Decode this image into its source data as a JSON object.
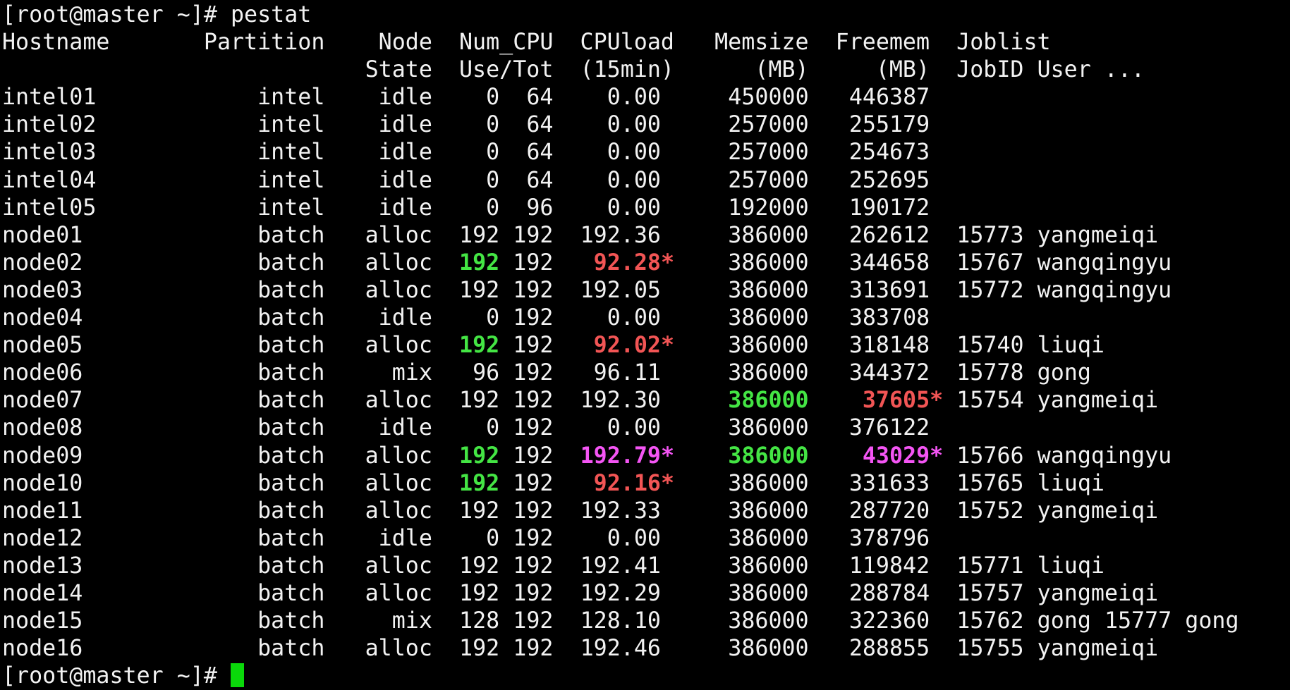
{
  "terminal": {
    "colors": {
      "background": "#000000",
      "foreground": "#f2f2f2",
      "highlight_green": "#44e544",
      "alert_red": "#f25555",
      "alert_magenta": "#f455f4",
      "cursor_green": "#0ad80a"
    },
    "command_line": {
      "prompt": "[root@master ~]#",
      "command": "pestat"
    },
    "header": {
      "line1": "Hostname       Partition    Node  Num_CPU  CPUload   Memsize  Freemem  Joblist",
      "line2": "                           State  Use/Tot  (15min)      (MB)     (MB)  JobID User ..."
    },
    "rows": [
      {
        "hostname": "intel01",
        "partition": "intel",
        "state": "idle",
        "cpu_use": "0",
        "cpu_tot": "64",
        "cpuload": "0.00",
        "cpuload_star": false,
        "memsize": "450000",
        "freemem": "446387",
        "freemem_star": false,
        "joblist": ""
      },
      {
        "hostname": "intel02",
        "partition": "intel",
        "state": "idle",
        "cpu_use": "0",
        "cpu_tot": "64",
        "cpuload": "0.00",
        "cpuload_star": false,
        "memsize": "257000",
        "freemem": "255179",
        "freemem_star": false,
        "joblist": ""
      },
      {
        "hostname": "intel03",
        "partition": "intel",
        "state": "idle",
        "cpu_use": "0",
        "cpu_tot": "64",
        "cpuload": "0.00",
        "cpuload_star": false,
        "memsize": "257000",
        "freemem": "254673",
        "freemem_star": false,
        "joblist": ""
      },
      {
        "hostname": "intel04",
        "partition": "intel",
        "state": "idle",
        "cpu_use": "0",
        "cpu_tot": "64",
        "cpuload": "0.00",
        "cpuload_star": false,
        "memsize": "257000",
        "freemem": "252695",
        "freemem_star": false,
        "joblist": ""
      },
      {
        "hostname": "intel05",
        "partition": "intel",
        "state": "idle",
        "cpu_use": "0",
        "cpu_tot": "96",
        "cpuload": "0.00",
        "cpuload_star": false,
        "memsize": "192000",
        "freemem": "190172",
        "freemem_star": false,
        "joblist": ""
      },
      {
        "hostname": "node01",
        "partition": "batch",
        "state": "alloc",
        "cpu_use": "192",
        "cpu_tot": "192",
        "cpuload": "192.36",
        "cpuload_star": false,
        "memsize": "386000",
        "freemem": "262612",
        "freemem_star": false,
        "joblist": "15773 yangmeiqi"
      },
      {
        "hostname": "node02",
        "partition": "batch",
        "state": "alloc",
        "cpu_use": "192",
        "cpu_use_color": "green",
        "cpu_tot": "192",
        "cpuload": "92.28",
        "cpuload_star": true,
        "cpuload_color": "red",
        "memsize": "386000",
        "freemem": "344658",
        "freemem_star": false,
        "joblist": "15767 wangqingyu"
      },
      {
        "hostname": "node03",
        "partition": "batch",
        "state": "alloc",
        "cpu_use": "192",
        "cpu_tot": "192",
        "cpuload": "192.05",
        "cpuload_star": false,
        "memsize": "386000",
        "freemem": "313691",
        "freemem_star": false,
        "joblist": "15772 wangqingyu"
      },
      {
        "hostname": "node04",
        "partition": "batch",
        "state": "idle",
        "cpu_use": "0",
        "cpu_tot": "192",
        "cpuload": "0.00",
        "cpuload_star": false,
        "memsize": "386000",
        "freemem": "383708",
        "freemem_star": false,
        "joblist": ""
      },
      {
        "hostname": "node05",
        "partition": "batch",
        "state": "alloc",
        "cpu_use": "192",
        "cpu_use_color": "green",
        "cpu_tot": "192",
        "cpuload": "92.02",
        "cpuload_star": true,
        "cpuload_color": "red",
        "memsize": "386000",
        "freemem": "318148",
        "freemem_star": false,
        "joblist": "15740 liuqi"
      },
      {
        "hostname": "node06",
        "partition": "batch",
        "state": "mix",
        "cpu_use": "96",
        "cpu_tot": "192",
        "cpuload": "96.11",
        "cpuload_star": false,
        "memsize": "386000",
        "freemem": "344372",
        "freemem_star": false,
        "joblist": "15778 gong"
      },
      {
        "hostname": "node07",
        "partition": "batch",
        "state": "alloc",
        "cpu_use": "192",
        "cpu_tot": "192",
        "cpuload": "192.30",
        "cpuload_star": false,
        "memsize": "386000",
        "memsize_color": "green",
        "freemem": "37605",
        "freemem_star": true,
        "freemem_color": "red",
        "joblist": "15754 yangmeiqi"
      },
      {
        "hostname": "node08",
        "partition": "batch",
        "state": "idle",
        "cpu_use": "0",
        "cpu_tot": "192",
        "cpuload": "0.00",
        "cpuload_star": false,
        "memsize": "386000",
        "freemem": "376122",
        "freemem_star": false,
        "joblist": ""
      },
      {
        "hostname": "node09",
        "partition": "batch",
        "state": "alloc",
        "cpu_use": "192",
        "cpu_use_color": "green",
        "cpu_tot": "192",
        "cpuload": "192.79",
        "cpuload_star": true,
        "cpuload_color": "magenta",
        "memsize": "386000",
        "memsize_color": "green",
        "freemem": "43029",
        "freemem_star": true,
        "freemem_color": "magenta",
        "joblist": "15766 wangqingyu"
      },
      {
        "hostname": "node10",
        "partition": "batch",
        "state": "alloc",
        "cpu_use": "192",
        "cpu_use_color": "green",
        "cpu_tot": "192",
        "cpuload": "92.16",
        "cpuload_star": true,
        "cpuload_color": "red",
        "memsize": "386000",
        "freemem": "331633",
        "freemem_star": false,
        "joblist": "15765 liuqi"
      },
      {
        "hostname": "node11",
        "partition": "batch",
        "state": "alloc",
        "cpu_use": "192",
        "cpu_tot": "192",
        "cpuload": "192.33",
        "cpuload_star": false,
        "memsize": "386000",
        "freemem": "287720",
        "freemem_star": false,
        "joblist": "15752 yangmeiqi"
      },
      {
        "hostname": "node12",
        "partition": "batch",
        "state": "idle",
        "cpu_use": "0",
        "cpu_tot": "192",
        "cpuload": "0.00",
        "cpuload_star": false,
        "memsize": "386000",
        "freemem": "378796",
        "freemem_star": false,
        "joblist": ""
      },
      {
        "hostname": "node13",
        "partition": "batch",
        "state": "alloc",
        "cpu_use": "192",
        "cpu_tot": "192",
        "cpuload": "192.41",
        "cpuload_star": false,
        "memsize": "386000",
        "freemem": "119842",
        "freemem_star": false,
        "joblist": "15771 liuqi"
      },
      {
        "hostname": "node14",
        "partition": "batch",
        "state": "alloc",
        "cpu_use": "192",
        "cpu_tot": "192",
        "cpuload": "192.29",
        "cpuload_star": false,
        "memsize": "386000",
        "freemem": "288784",
        "freemem_star": false,
        "joblist": "15757 yangmeiqi"
      },
      {
        "hostname": "node15",
        "partition": "batch",
        "state": "mix",
        "cpu_use": "128",
        "cpu_tot": "192",
        "cpuload": "128.10",
        "cpuload_star": false,
        "memsize": "386000",
        "freemem": "322360",
        "freemem_star": false,
        "joblist": "15762 gong 15777 gong"
      },
      {
        "hostname": "node16",
        "partition": "batch",
        "state": "alloc",
        "cpu_use": "192",
        "cpu_tot": "192",
        "cpuload": "192.46",
        "cpuload_star": false,
        "memsize": "386000",
        "freemem": "288855",
        "freemem_star": false,
        "joblist": "15755 yangmeiqi"
      }
    ],
    "footer": {
      "prompt": "[root@master ~]#",
      "cursor": true
    }
  }
}
